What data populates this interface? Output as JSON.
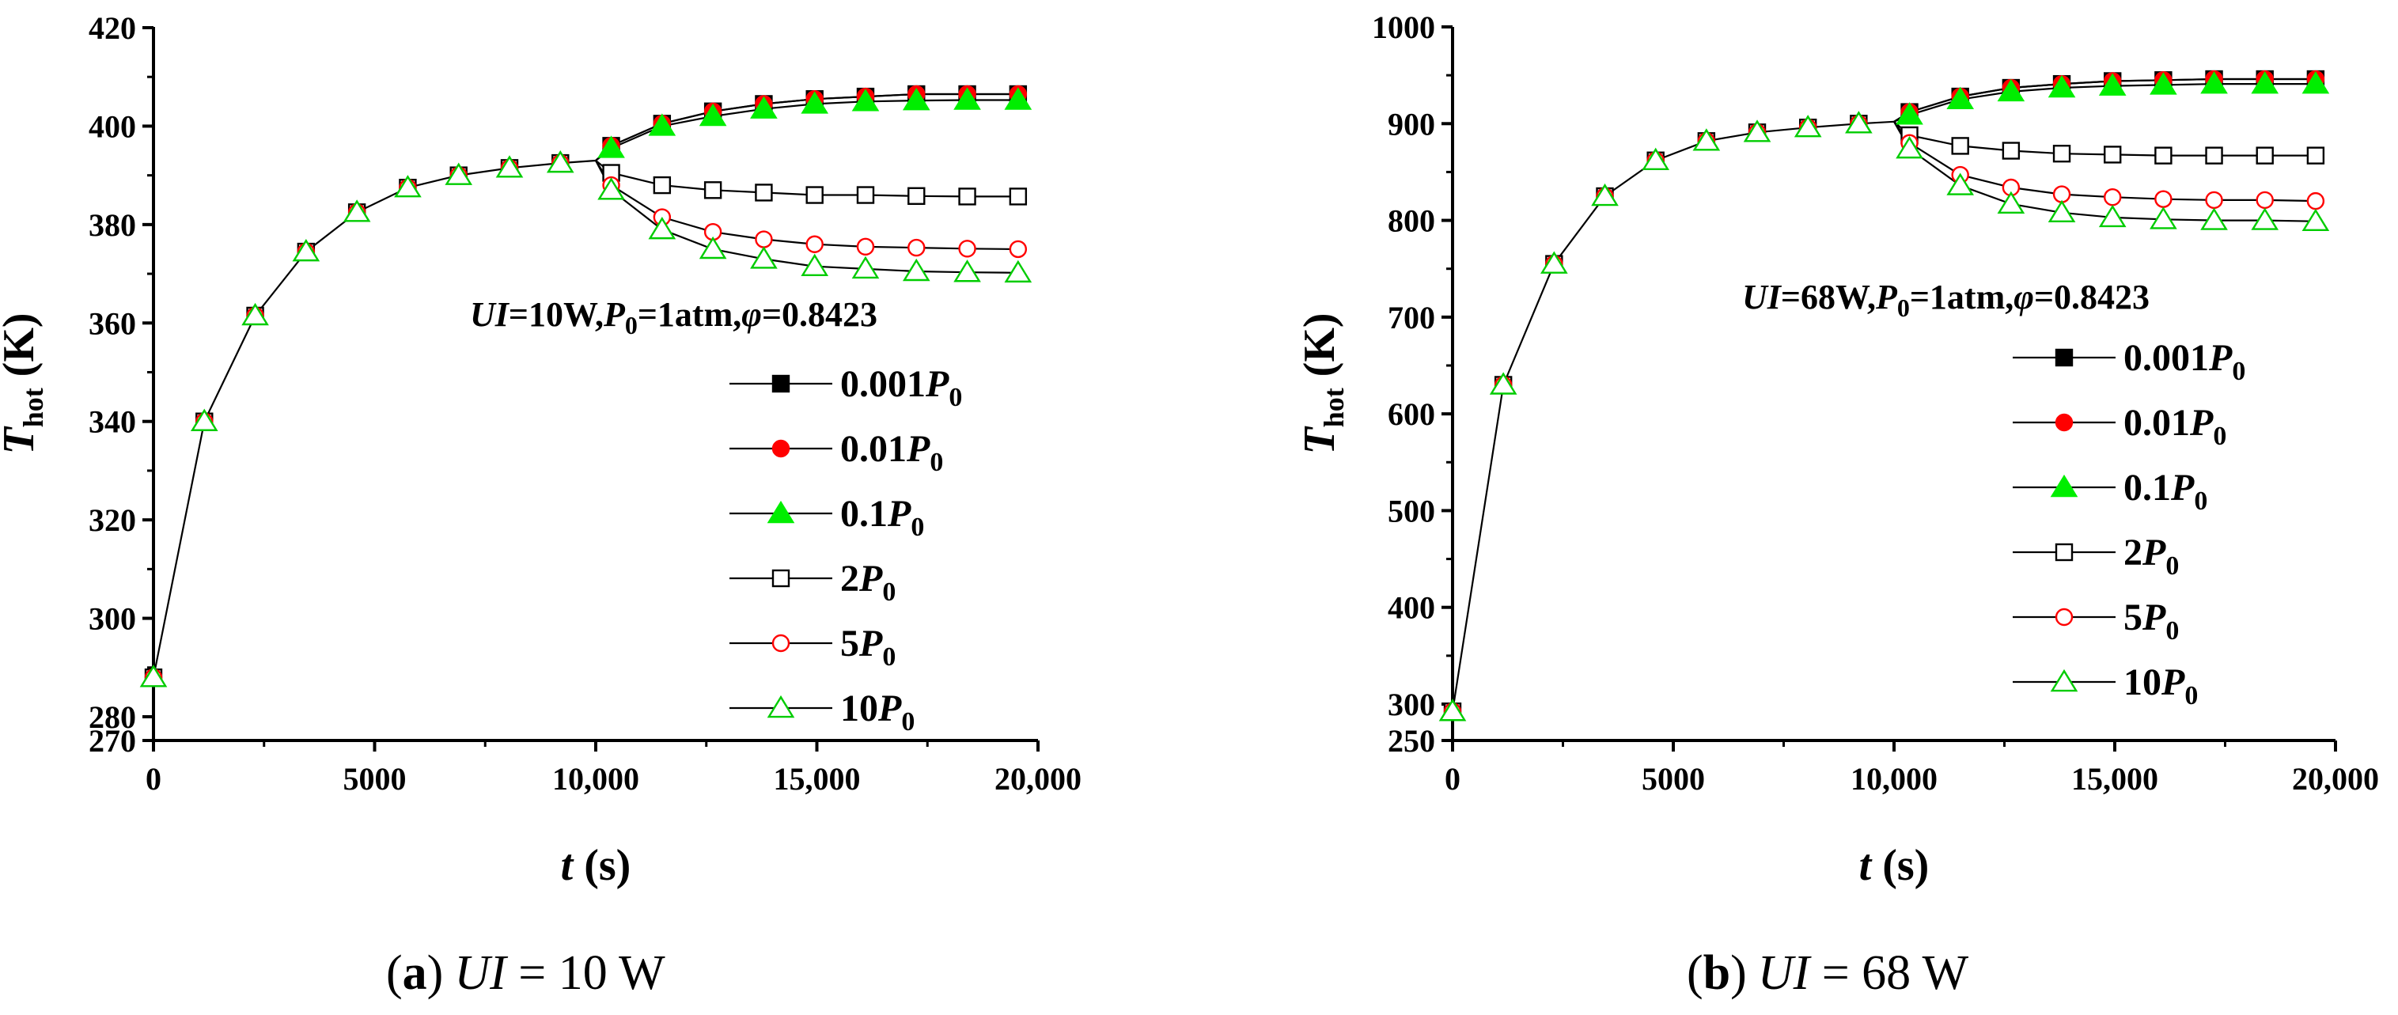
{
  "chart_data": [
    {
      "id": "a",
      "type": "line",
      "xlabel_var": "t",
      "xlabel_unit": " (s)",
      "ylabel_var": "T",
      "ylabel_sub": "hot",
      "ylabel_unit": " (K)",
      "xlim": [
        0,
        20000
      ],
      "ylim": [
        270,
        420
      ],
      "xticks": [
        0,
        5000,
        10000,
        15000,
        20000
      ],
      "xtick_labels": [
        "0",
        "5000",
        "10,000",
        "15,000",
        "20,000"
      ],
      "yticks": [
        270,
        280,
        300,
        320,
        340,
        360,
        380,
        400,
        420
      ],
      "ytick_labels": [
        "270",
        "280",
        "300",
        "320",
        "340",
        "360",
        "380",
        "400",
        "420"
      ],
      "annotation": {
        "p1": "UI",
        "p2": "=10W,",
        "p3": "P",
        "p4": "0",
        "p5": "=1atm,",
        "p6": "φ",
        "p7": "=0.8423"
      },
      "legend": [
        {
          "coef": "0.001",
          "var": "P",
          "sub": "0"
        },
        {
          "coef": "0.01",
          "var": "P",
          "sub": "0"
        },
        {
          "coef": "0.1",
          "var": "P",
          "sub": "0"
        },
        {
          "coef": "2",
          "var": "P",
          "sub": "0"
        },
        {
          "coef": "5",
          "var": "P",
          "sub": "0"
        },
        {
          "coef": "10",
          "var": "P",
          "sub": "0"
        }
      ],
      "shared": {
        "x": [
          0,
          1150,
          2300,
          3450,
          4600,
          5750,
          6900,
          8050,
          9200,
          10000
        ],
        "values": [
          288,
          340,
          361.5,
          374.5,
          382.5,
          387.5,
          390,
          391.5,
          392.5,
          393
        ]
      },
      "series": [
        {
          "name": "0.001P0",
          "marker": "square",
          "filled": true,
          "color": "#000000",
          "x": [
            10350,
            11500,
            12650,
            13800,
            14950,
            16100,
            17250,
            18400,
            19550
          ],
          "values": [
            396,
            400.5,
            403,
            404.5,
            405.5,
            406,
            406.5,
            406.5,
            406.5
          ]
        },
        {
          "name": "0.01P0",
          "marker": "circle",
          "filled": true,
          "color": "#ff0000",
          "x": [
            10350,
            11500,
            12650,
            13800,
            14950,
            16100,
            17250,
            18400,
            19550
          ],
          "values": [
            396,
            400.5,
            403,
            404.5,
            405.5,
            406,
            406.5,
            406.5,
            406.5
          ]
        },
        {
          "name": "0.1P0",
          "marker": "triangle",
          "filled": true,
          "color": "#00ee00",
          "x": [
            10350,
            11500,
            12650,
            13800,
            14950,
            16100,
            17250,
            18400,
            19550
          ],
          "values": [
            395.5,
            400,
            402,
            403.5,
            404.5,
            405,
            405.2,
            405.3,
            405.3
          ]
        },
        {
          "name": "2P0",
          "marker": "square",
          "filled": false,
          "color": "#000000",
          "x": [
            10350,
            11500,
            12650,
            13800,
            14950,
            16100,
            17250,
            18400,
            19550
          ],
          "values": [
            390.5,
            388,
            387,
            386.5,
            386,
            386,
            385.8,
            385.7,
            385.7
          ]
        },
        {
          "name": "5P0",
          "marker": "circle",
          "filled": false,
          "color": "#ff0000",
          "x": [
            10350,
            11500,
            12650,
            13800,
            14950,
            16100,
            17250,
            18400,
            19550
          ],
          "values": [
            388,
            381.5,
            378.5,
            377,
            376,
            375.5,
            375.3,
            375.1,
            375
          ]
        },
        {
          "name": "10P0",
          "marker": "triangle",
          "filled": false,
          "color": "#00cc00",
          "x": [
            10350,
            11500,
            12650,
            13800,
            14950,
            16100,
            17250,
            18400,
            19550
          ],
          "values": [
            387,
            379,
            375,
            373,
            371.5,
            371,
            370.5,
            370.3,
            370.2
          ]
        }
      ]
    },
    {
      "id": "b",
      "type": "line",
      "xlabel_var": "t",
      "xlabel_unit": " (s)",
      "ylabel_var": "T",
      "ylabel_sub": "hot",
      "ylabel_unit": " (K)",
      "xlim": [
        0,
        20000
      ],
      "ylim": [
        250,
        1000
      ],
      "xticks": [
        0,
        5000,
        10000,
        15000,
        20000
      ],
      "xtick_labels": [
        "0",
        "5000",
        "10,000",
        "15,000",
        "20,000"
      ],
      "yticks": [
        250,
        300,
        400,
        500,
        600,
        700,
        800,
        900,
        1000
      ],
      "ytick_labels": [
        "250",
        "300",
        "400",
        "500",
        "600",
        "700",
        "800",
        "900",
        "1000"
      ],
      "annotation": {
        "p1": "UI",
        "p2": "=68W,",
        "p3": "P",
        "p4": "0",
        "p5": "=1atm,",
        "p6": "φ",
        "p7": "=0.8423"
      },
      "legend": [
        {
          "coef": "0.001",
          "var": "P",
          "sub": "0"
        },
        {
          "coef": "0.01",
          "var": "P",
          "sub": "0"
        },
        {
          "coef": "0.1",
          "var": "P",
          "sub": "0"
        },
        {
          "coef": "2",
          "var": "P",
          "sub": "0"
        },
        {
          "coef": "5",
          "var": "P",
          "sub": "0"
        },
        {
          "coef": "10",
          "var": "P",
          "sub": "0"
        }
      ],
      "shared": {
        "x": [
          0,
          1150,
          2300,
          3450,
          4600,
          5750,
          6900,
          8050,
          9200,
          10000
        ],
        "values": [
          290,
          630,
          755,
          825,
          862,
          882,
          891,
          896,
          900,
          902
        ]
      },
      "series": [
        {
          "name": "0.001P0",
          "marker": "square",
          "filled": true,
          "color": "#000000",
          "x": [
            10350,
            11500,
            12650,
            13800,
            14950,
            16100,
            17250,
            18400,
            19550
          ],
          "values": [
            912,
            928,
            937,
            941,
            944,
            945,
            946,
            946,
            946
          ]
        },
        {
          "name": "0.01P0",
          "marker": "circle",
          "filled": true,
          "color": "#ff0000",
          "x": [
            10350,
            11500,
            12650,
            13800,
            14950,
            16100,
            17250,
            18400,
            19550
          ],
          "values": [
            912,
            928,
            937,
            941,
            944,
            945,
            946,
            946,
            946
          ]
        },
        {
          "name": "0.1P0",
          "marker": "triangle",
          "filled": true,
          "color": "#00ee00",
          "x": [
            10350,
            11500,
            12650,
            13800,
            14950,
            16100,
            17250,
            18400,
            19550
          ],
          "values": [
            909,
            925,
            933,
            937,
            939,
            940,
            941,
            941,
            941
          ]
        },
        {
          "name": "2P0",
          "marker": "square",
          "filled": false,
          "color": "#000000",
          "x": [
            10350,
            11500,
            12650,
            13800,
            14950,
            16100,
            17250,
            18400,
            19550
          ],
          "values": [
            888,
            877,
            872,
            869,
            868,
            867,
            867,
            867,
            867
          ]
        },
        {
          "name": "5P0",
          "marker": "circle",
          "filled": false,
          "color": "#ff0000",
          "x": [
            10350,
            11500,
            12650,
            13800,
            14950,
            16100,
            17250,
            18400,
            19550
          ],
          "values": [
            880,
            847,
            834,
            827,
            824,
            822,
            821,
            821,
            820
          ]
        },
        {
          "name": "10P0",
          "marker": "triangle",
          "filled": false,
          "color": "#00cc00",
          "x": [
            10350,
            11500,
            12650,
            13800,
            14950,
            16100,
            17250,
            18400,
            19550
          ],
          "values": [
            874,
            836,
            817,
            808,
            803,
            801,
            800,
            800,
            799
          ]
        }
      ]
    }
  ],
  "captions": [
    {
      "label": "(a)",
      "lp": "(",
      "lbold": "a",
      "rp": ")",
      "var": "UI",
      "rest": " = 10 W"
    },
    {
      "label": "(b)",
      "lp": "(",
      "lbold": "b",
      "rp": ")",
      "var": "UI",
      "rest": " = 68 W"
    }
  ]
}
